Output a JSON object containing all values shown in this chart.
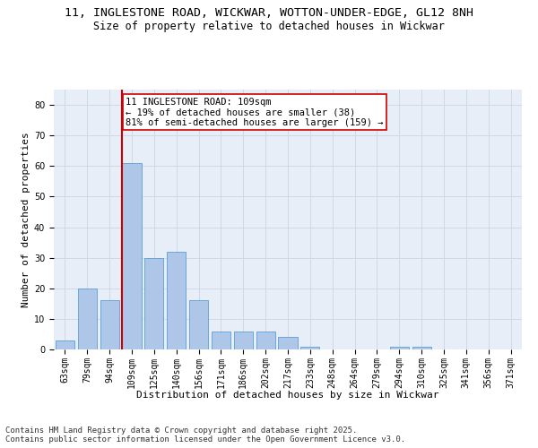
{
  "title1": "11, INGLESTONE ROAD, WICKWAR, WOTTON-UNDER-EDGE, GL12 8NH",
  "title2": "Size of property relative to detached houses in Wickwar",
  "xlabel": "Distribution of detached houses by size in Wickwar",
  "ylabel": "Number of detached properties",
  "categories": [
    "63sqm",
    "79sqm",
    "94sqm",
    "109sqm",
    "125sqm",
    "140sqm",
    "156sqm",
    "171sqm",
    "186sqm",
    "202sqm",
    "217sqm",
    "233sqm",
    "248sqm",
    "264sqm",
    "279sqm",
    "294sqm",
    "310sqm",
    "325sqm",
    "341sqm",
    "356sqm",
    "371sqm"
  ],
  "values": [
    3,
    20,
    16,
    61,
    30,
    32,
    16,
    6,
    6,
    6,
    4,
    1,
    0,
    0,
    0,
    1,
    1,
    0,
    0,
    0,
    0
  ],
  "bar_color": "#aec6e8",
  "bar_edge_color": "#5a9fd4",
  "grid_color": "#d0d8e8",
  "bg_color": "#e8eef8",
  "vline_x_index": 3,
  "vline_color": "#cc0000",
  "annotation_text": "11 INGLESTONE ROAD: 109sqm\n← 19% of detached houses are smaller (38)\n81% of semi-detached houses are larger (159) →",
  "annotation_box_color": "#ffffff",
  "annotation_box_edge": "#cc0000",
  "ylim": [
    0,
    85
  ],
  "yticks": [
    0,
    10,
    20,
    30,
    40,
    50,
    60,
    70,
    80
  ],
  "footnote": "Contains HM Land Registry data © Crown copyright and database right 2025.\nContains public sector information licensed under the Open Government Licence v3.0.",
  "title_fontsize": 9.5,
  "subtitle_fontsize": 8.5,
  "axis_label_fontsize": 8,
  "tick_fontsize": 7,
  "annotation_fontsize": 7.5,
  "footnote_fontsize": 6.5
}
